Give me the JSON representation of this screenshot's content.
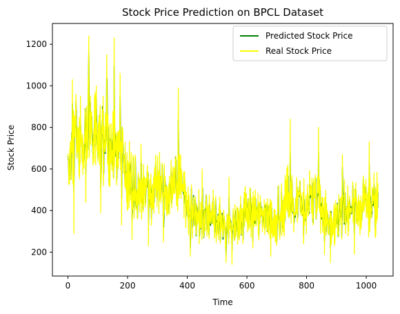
{
  "chart_data": {
    "type": "line",
    "title": "Stock Price Prediction on BPCL Dataset",
    "xlabel": "Time",
    "ylabel": "Stock Price",
    "xlim": [
      -52,
      1090
    ],
    "ylim": [
      85,
      1300
    ],
    "xticks": [
      0,
      200,
      400,
      600,
      800,
      1000
    ],
    "yticks": [
      200,
      400,
      600,
      800,
      1000,
      1200
    ],
    "grid": false,
    "legend_position": "top-right",
    "colors": {
      "predicted": "#008000",
      "real": "#ffff00",
      "axis": "#000000",
      "legend_border": "#cccccc"
    },
    "anchors": {
      "x": [
        0,
        25,
        50,
        70,
        100,
        120,
        150,
        175,
        200,
        230,
        260,
        300,
        340,
        370,
        400,
        440,
        500,
        540,
        600,
        650,
        700,
        740,
        760,
        800,
        840,
        880,
        920,
        950,
        1000,
        1040
      ],
      "y": [
        600,
        760,
        700,
        820,
        730,
        760,
        700,
        720,
        560,
        500,
        490,
        520,
        480,
        560,
        400,
        380,
        360,
        320,
        380,
        360,
        340,
        480,
        450,
        430,
        460,
        320,
        400,
        420,
        430,
        440
      ]
    },
    "peaks": {
      "x": [
        15,
        42,
        70,
        95,
        130,
        155,
        175,
        200,
        245,
        300,
        370,
        450,
        540,
        610,
        705,
        745,
        840,
        920,
        1010
      ],
      "y": [
        1030,
        950,
        1240,
        1000,
        1150,
        1230,
        1060,
        640,
        720,
        660,
        990,
        600,
        560,
        510,
        520,
        840,
        800,
        670,
        730
      ]
    },
    "troughs": {
      "x": [
        20,
        60,
        110,
        180,
        215,
        270,
        320,
        410,
        440,
        530,
        550,
        620,
        680,
        790,
        860,
        880,
        960,
        1030
      ],
      "y": [
        290,
        440,
        390,
        330,
        260,
        230,
        250,
        180,
        240,
        150,
        140,
        220,
        180,
        240,
        190,
        150,
        190,
        270
      ]
    },
    "series": [
      {
        "name": "Predicted  Stock Price",
        "color": "#008000",
        "n_points": 1040
      },
      {
        "name": "Real Stock Price",
        "color": "#ffff00",
        "n_points": 1040
      }
    ]
  }
}
